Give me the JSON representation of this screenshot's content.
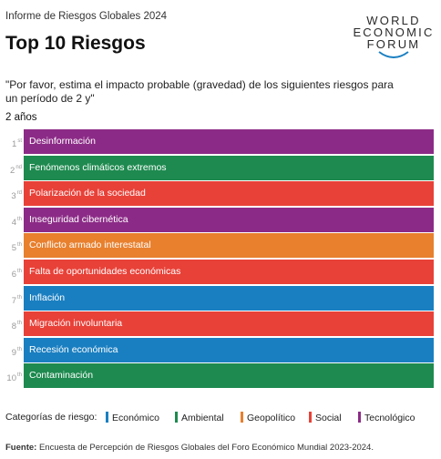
{
  "header": {
    "subtitle": "Informe de Riesgos Globales 2024",
    "title": "Top 10 Riesgos"
  },
  "logo": {
    "line1": "WORLD",
    "line2": "ECONOMIC",
    "line3": "FORUM"
  },
  "question": "\"Por favor, estima el impacto probable (gravedad) de los siguientes riesgos para un período de 2 y\"",
  "horizon": "2 años",
  "chart_data": {
    "type": "table",
    "title": "Top 10 Riesgos",
    "horizon": "2 años",
    "rows": [
      {
        "rank": "1",
        "suffix": "st",
        "label": "Desinformación",
        "category": "Tecnológico"
      },
      {
        "rank": "2",
        "suffix": "nd",
        "label": "Fenómenos climáticos extremos",
        "category": "Ambiental"
      },
      {
        "rank": "3",
        "suffix": "rd",
        "label": "Polarización de la sociedad",
        "category": "Social"
      },
      {
        "rank": "4",
        "suffix": "th",
        "label": "Inseguridad cibernética",
        "category": "Tecnológico"
      },
      {
        "rank": "5",
        "suffix": "th",
        "label": "Conflicto armado interestatal",
        "category": "Geopolítico"
      },
      {
        "rank": "6",
        "suffix": "th",
        "label": "Falta de oportunidades económicas",
        "category": "Social"
      },
      {
        "rank": "7",
        "suffix": "th",
        "label": "Inflación",
        "category": "Económico"
      },
      {
        "rank": "8",
        "suffix": "th",
        "label": "Migración involuntaria",
        "category": "Social"
      },
      {
        "rank": "9",
        "suffix": "th",
        "label": "Recesión económica",
        "category": "Económico"
      },
      {
        "rank": "10",
        "suffix": "th",
        "label": "Contaminación",
        "category": "Ambiental"
      }
    ]
  },
  "legend": {
    "title": "Categorías de riesgo:",
    "items": [
      {
        "name": "Económico",
        "color": "#1a7fc1"
      },
      {
        "name": "Ambiental",
        "color": "#1e8a4f"
      },
      {
        "name": "Geopolítico",
        "color": "#e8802e"
      },
      {
        "name": "Social",
        "color": "#e84138"
      },
      {
        "name": "Tecnológico",
        "color": "#8c2b87"
      }
    ]
  },
  "source": {
    "label": "Fuente:",
    "text": "Encuesta de Percepción de Riesgos Globales del Foro Económico Mundial 2023-2024."
  }
}
